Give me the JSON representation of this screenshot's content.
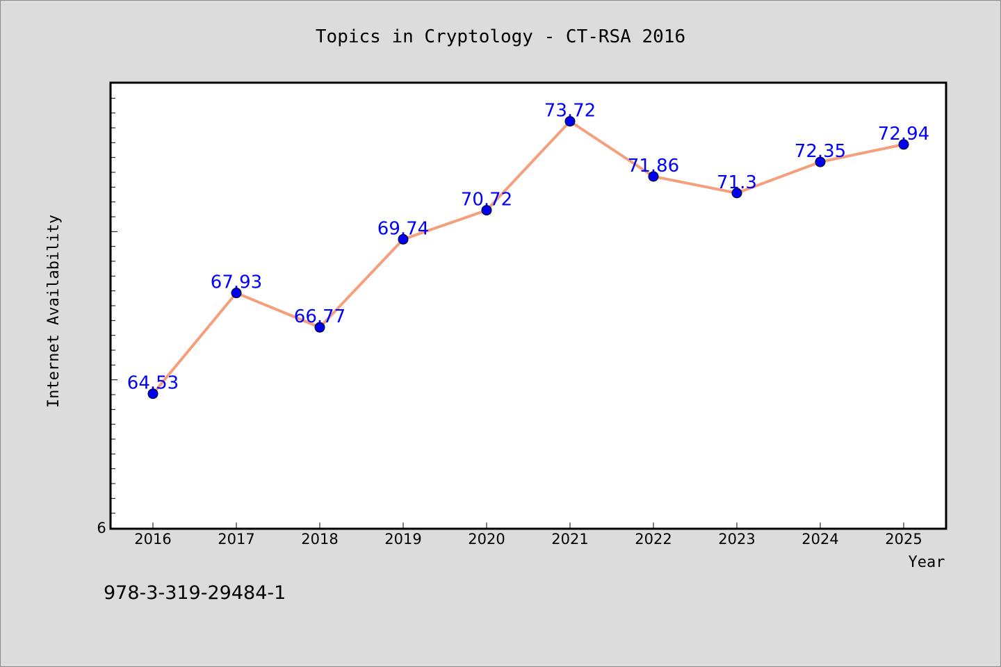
{
  "chart_data": {
    "type": "line",
    "title": "Topics in Cryptology - CT-RSA 2016",
    "xlabel": "Year",
    "ylabel": "Internet Availability",
    "categories": [
      "2016",
      "2017",
      "2018",
      "2019",
      "2020",
      "2021",
      "2022",
      "2023",
      "2024",
      "2025"
    ],
    "series": [
      {
        "values": [
          64.53,
          67.93,
          66.77,
          69.74,
          70.72,
          73.72,
          71.86,
          71.3,
          72.35,
          72.94
        ],
        "labels": [
          "64.53",
          "67.93",
          "66.77",
          "69.74",
          "70.72",
          "73.72",
          "71.86",
          "71.3",
          "72.35",
          "72.94"
        ]
      }
    ],
    "ylim": [
      60,
      75
    ],
    "y_tick_labels": [
      "6"
    ],
    "grid": false,
    "legend": "none",
    "colors": {
      "line": "#f4a07c",
      "marker": "#0000ee",
      "label": "#0000ff",
      "plot_bg": "#ffffff",
      "page_bg": "#dcdcdc"
    }
  },
  "footer_text": "978-3-319-29484-1"
}
